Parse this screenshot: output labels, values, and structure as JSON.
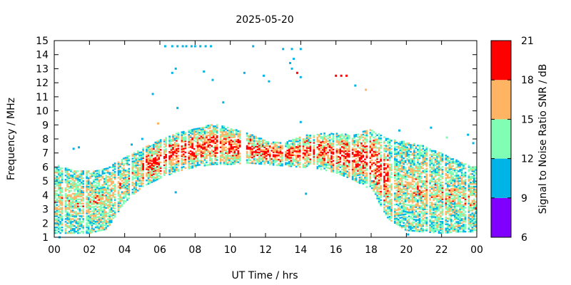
{
  "chart_data": {
    "type": "heatmap",
    "title": "2025-05-20",
    "xlabel": "UT Time / hrs",
    "ylabel": "Frequency / MHz",
    "xlim": [
      0,
      24
    ],
    "ylim": [
      1,
      15
    ],
    "x_tick_labels": [
      "00",
      "02",
      "04",
      "06",
      "08",
      "10",
      "12",
      "14",
      "16",
      "18",
      "20",
      "22",
      "00"
    ],
    "y_tick_labels": [
      "1",
      "2",
      "3",
      "4",
      "5",
      "6",
      "7",
      "8",
      "9",
      "10",
      "11",
      "12",
      "13",
      "14",
      "15"
    ],
    "colorbar": {
      "label": "Signal to Noise Ratio SNR / dB",
      "range": [
        6,
        21
      ],
      "tick_labels": [
        "6",
        "9",
        "12",
        "15",
        "18",
        "21"
      ],
      "bands": [
        {
          "min": 6,
          "max": 9,
          "color": "#8000ff"
        },
        {
          "min": 9,
          "max": 12,
          "color": "#00b4e8"
        },
        {
          "min": 12,
          "max": 15,
          "color": "#80ffb4"
        },
        {
          "min": 15,
          "max": 18,
          "color": "#ffb464"
        },
        {
          "min": 18,
          "max": 21,
          "color": "#ff0000"
        }
      ]
    },
    "envelope": {
      "hours": [
        0,
        1,
        2,
        3,
        4,
        5,
        6,
        7,
        8,
        9,
        10,
        11,
        12,
        13,
        14,
        15,
        16,
        17,
        18,
        19,
        20,
        21,
        22,
        23,
        24
      ],
      "upper_mhz": [
        6.2,
        5.8,
        5.7,
        5.9,
        6.7,
        7.3,
        8.0,
        8.4,
        8.7,
        9.1,
        8.8,
        8.4,
        7.9,
        7.7,
        8.2,
        8.4,
        8.4,
        8.3,
        8.7,
        8.0,
        7.8,
        7.5,
        7.0,
        6.4,
        6.0
      ],
      "lower_mhz": [
        1.3,
        1.3,
        1.3,
        1.6,
        3.5,
        4.6,
        5.2,
        5.7,
        6.0,
        6.2,
        6.2,
        6.3,
        6.2,
        6.1,
        6.0,
        5.9,
        5.6,
        5.1,
        4.4,
        2.3,
        1.5,
        1.4,
        1.3,
        1.4,
        1.4
      ]
    },
    "outliers": [
      {
        "t": 6.3,
        "f": 14.6,
        "snr": 10
      },
      {
        "t": 6.7,
        "f": 14.6,
        "snr": 10
      },
      {
        "t": 7.0,
        "f": 14.6,
        "snr": 10
      },
      {
        "t": 7.3,
        "f": 14.6,
        "snr": 10
      },
      {
        "t": 7.5,
        "f": 14.6,
        "snr": 10
      },
      {
        "t": 7.8,
        "f": 14.6,
        "snr": 10
      },
      {
        "t": 8.0,
        "f": 14.6,
        "snr": 10
      },
      {
        "t": 8.3,
        "f": 14.6,
        "snr": 10
      },
      {
        "t": 8.6,
        "f": 14.6,
        "snr": 10
      },
      {
        "t": 8.9,
        "f": 14.6,
        "snr": 10
      },
      {
        "t": 11.3,
        "f": 14.6,
        "snr": 10
      },
      {
        "t": 13.0,
        "f": 14.4,
        "snr": 10
      },
      {
        "t": 13.5,
        "f": 14.4,
        "snr": 10
      },
      {
        "t": 14.0,
        "f": 14.4,
        "snr": 10
      },
      {
        "t": 13.4,
        "f": 13.4,
        "snr": 10
      },
      {
        "t": 13.6,
        "f": 13.7,
        "snr": 10
      },
      {
        "t": 13.5,
        "f": 13.0,
        "snr": 10
      },
      {
        "t": 14.0,
        "f": 12.4,
        "snr": 10
      },
      {
        "t": 13.8,
        "f": 12.7,
        "snr": 19
      },
      {
        "t": 6.9,
        "f": 13.0,
        "snr": 10
      },
      {
        "t": 6.7,
        "f": 12.7,
        "snr": 10
      },
      {
        "t": 8.5,
        "f": 12.8,
        "snr": 10
      },
      {
        "t": 9.0,
        "f": 12.2,
        "snr": 10
      },
      {
        "t": 10.8,
        "f": 12.7,
        "snr": 10
      },
      {
        "t": 11.9,
        "f": 12.5,
        "snr": 10
      },
      {
        "t": 12.2,
        "f": 12.1,
        "snr": 10
      },
      {
        "t": 16.0,
        "f": 12.5,
        "snr": 20
      },
      {
        "t": 16.3,
        "f": 12.5,
        "snr": 20
      },
      {
        "t": 16.6,
        "f": 12.5,
        "snr": 20
      },
      {
        "t": 17.1,
        "f": 11.8,
        "snr": 10
      },
      {
        "t": 17.7,
        "f": 11.5,
        "snr": 16
      },
      {
        "t": 5.6,
        "f": 11.2,
        "snr": 10
      },
      {
        "t": 7.0,
        "f": 10.2,
        "snr": 10
      },
      {
        "t": 9.6,
        "f": 10.6,
        "snr": 10
      },
      {
        "t": 5.9,
        "f": 9.1,
        "snr": 16
      },
      {
        "t": 14.0,
        "f": 9.2,
        "snr": 10
      },
      {
        "t": 1.1,
        "f": 7.3,
        "snr": 10
      },
      {
        "t": 1.4,
        "f": 7.4,
        "snr": 10
      },
      {
        "t": 5.0,
        "f": 8.0,
        "snr": 10
      },
      {
        "t": 4.4,
        "f": 7.6,
        "snr": 10
      },
      {
        "t": 19.6,
        "f": 8.6,
        "snr": 10
      },
      {
        "t": 21.4,
        "f": 8.8,
        "snr": 10
      },
      {
        "t": 22.3,
        "f": 8.1,
        "snr": 13
      },
      {
        "t": 23.5,
        "f": 8.3,
        "snr": 10
      },
      {
        "t": 23.8,
        "f": 7.7,
        "snr": 10
      },
      {
        "t": 14.3,
        "f": 4.1,
        "snr": 10
      },
      {
        "t": 6.9,
        "f": 4.2,
        "snr": 10
      },
      {
        "t": 20.1,
        "f": 1.2,
        "snr": 10
      },
      {
        "t": 0.3,
        "f": 1.0,
        "snr": 10
      }
    ],
    "scatter_seed": 20250520,
    "scatter_column_spacing_hrs": 0.1
  }
}
